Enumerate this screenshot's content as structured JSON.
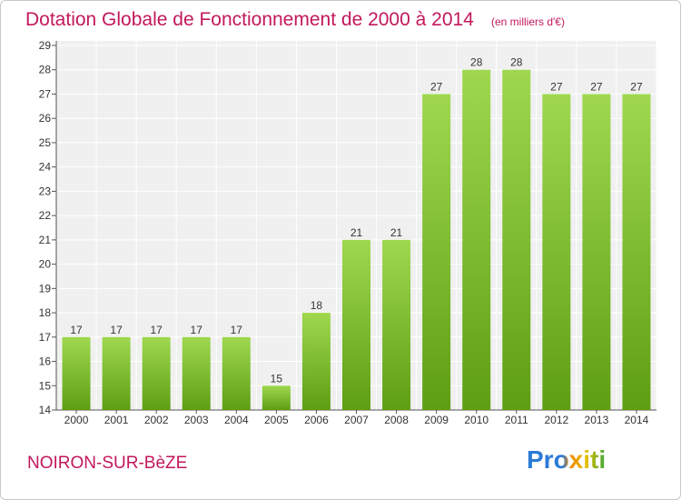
{
  "header": {
    "title": "Dotation Globale de Fonctionnement de 2000 à 2014",
    "unit": "(en milliers d'€)"
  },
  "footer": {
    "commune": "NOIRON-SUR-BèZE",
    "logo": "Proxiti"
  },
  "colors": {
    "bar_light": "#9fd84f",
    "bar_dark": "#5e9e12",
    "title": "#c2185b",
    "plot_bg": "#f0f0f0",
    "grid": "#ffffff"
  },
  "chart_data": {
    "type": "bar",
    "title": "Dotation Globale de Fonctionnement de 2000 à 2014",
    "categories": [
      "2000",
      "2001",
      "2002",
      "2003",
      "2004",
      "2005",
      "2006",
      "2007",
      "2008",
      "2009",
      "2010",
      "2011",
      "2012",
      "2013",
      "2014"
    ],
    "values": [
      17,
      17,
      17,
      17,
      17,
      15,
      18,
      21,
      21,
      27,
      28,
      28,
      27,
      27,
      27
    ],
    "ylim": [
      14,
      29
    ],
    "yticks": [
      14,
      15,
      16,
      17,
      18,
      19,
      20,
      21,
      22,
      23,
      24,
      25,
      26,
      27,
      28,
      29
    ],
    "xlabel": "",
    "ylabel": "",
    "grid": true,
    "legend": "none"
  }
}
